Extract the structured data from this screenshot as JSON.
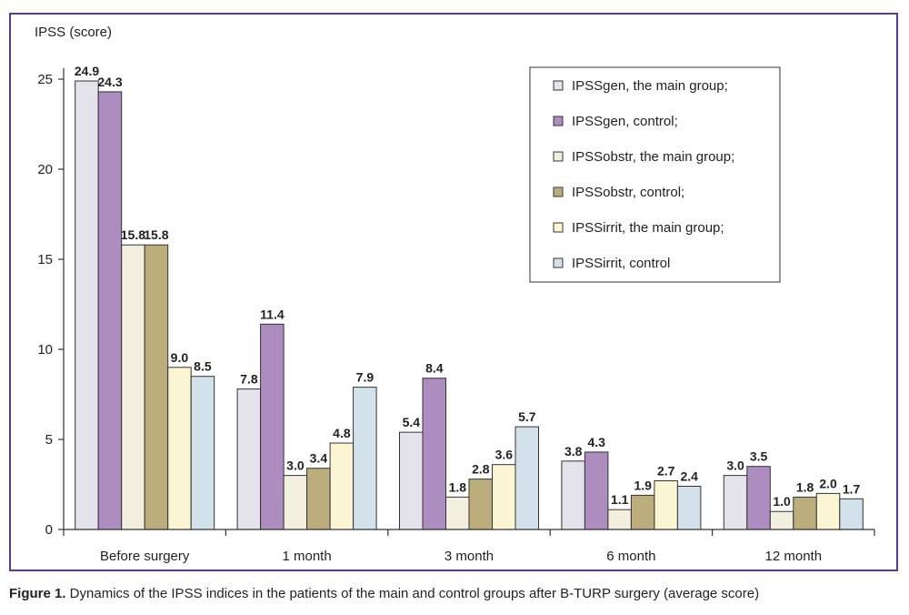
{
  "chart_data": {
    "type": "bar",
    "ylabel": "IPSS (score)",
    "ylim": [
      0,
      25
    ],
    "yticks": [
      0,
      5,
      10,
      15,
      20,
      25
    ],
    "grid": false,
    "legend_position": "top-right",
    "categories": [
      "Before surgery",
      "1 month",
      "3 month",
      "6 month",
      "12 month"
    ],
    "series": [
      {
        "name": "IPSSgen, the main group;",
        "color": "#e4e2ea",
        "values": [
          24.9,
          7.8,
          5.4,
          3.8,
          3.0
        ],
        "labels": [
          "24.9",
          "7.8",
          "5.4",
          "3.8",
          "3.0"
        ]
      },
      {
        "name": "IPSSgen, control;",
        "color": "#ad8cbf",
        "values": [
          24.3,
          11.4,
          8.4,
          4.3,
          3.5
        ],
        "labels": [
          "24.3",
          "11.4",
          "8.4",
          "4.3",
          "3.5"
        ]
      },
      {
        "name": "IPSSobstr, the main group;",
        "color": "#f1f0de",
        "values": [
          15.8,
          3.0,
          1.8,
          1.1,
          1.0
        ],
        "labels": [
          "15.8",
          "3.0",
          "1.8",
          "1.1",
          "1.0"
        ]
      },
      {
        "name": "IPSSobstr, control;",
        "color": "#bcae7c",
        "values": [
          15.8,
          3.4,
          2.8,
          1.9,
          1.8
        ],
        "labels": [
          "15.8",
          "3.4",
          "2.8",
          "1.9",
          "1.8"
        ]
      },
      {
        "name": "IPSSirrit, the main group;",
        "color": "#fbf5d4",
        "values": [
          9.0,
          4.8,
          3.6,
          2.7,
          2.0
        ],
        "labels": [
          "9.0",
          "4.8",
          "3.6",
          "2.7",
          "2.0"
        ]
      },
      {
        "name": "IPSSirrit, control",
        "color": "#d3e2ea",
        "values": [
          8.5,
          7.9,
          5.7,
          2.4,
          1.7
        ],
        "labels": [
          "8.5",
          "7.9",
          "5.7",
          "2.4",
          "1.7"
        ]
      }
    ]
  },
  "caption": {
    "label": "Figure 1.",
    "text": " Dynamics of the IPSS indices in the patients of the main and control groups after B-TURP surgery (average score)"
  }
}
